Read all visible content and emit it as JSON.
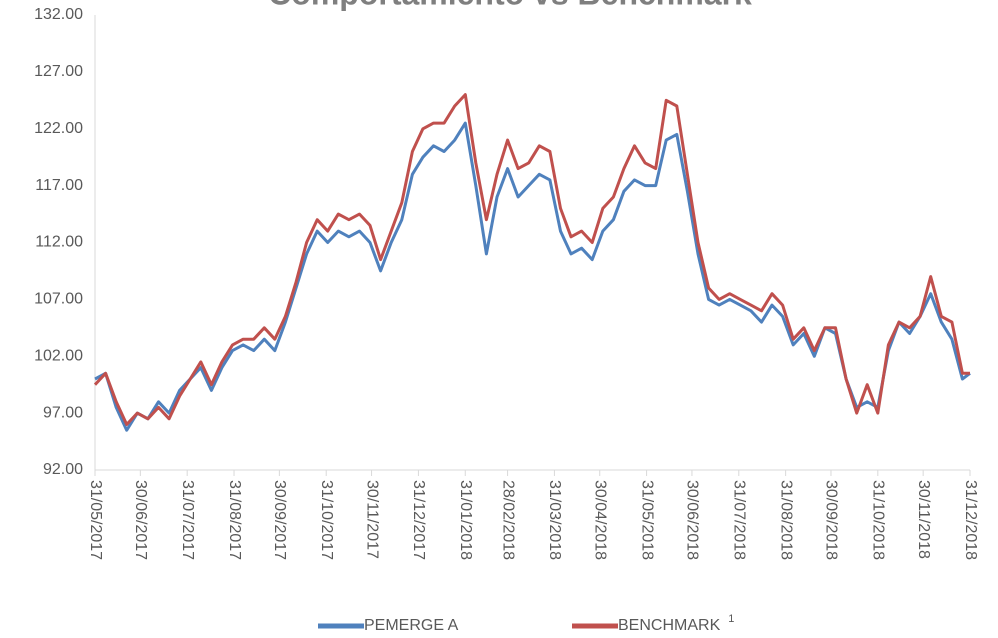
{
  "chart_data": {
    "type": "line",
    "title": "Comportamiento vs Benchmark",
    "x": [
      "2017-05-31",
      "2017-06-07",
      "2017-06-14",
      "2017-06-21",
      "2017-06-28",
      "2017-07-05",
      "2017-07-12",
      "2017-07-19",
      "2017-07-26",
      "2017-08-02",
      "2017-08-09",
      "2017-08-16",
      "2017-08-23",
      "2017-08-30",
      "2017-09-06",
      "2017-09-13",
      "2017-09-20",
      "2017-09-27",
      "2017-10-04",
      "2017-10-11",
      "2017-10-18",
      "2017-10-25",
      "2017-11-01",
      "2017-11-08",
      "2017-11-15",
      "2017-11-22",
      "2017-11-29",
      "2017-12-06",
      "2017-12-13",
      "2017-12-20",
      "2017-12-27",
      "2018-01-03",
      "2018-01-10",
      "2018-01-17",
      "2018-01-24",
      "2018-01-31",
      "2018-02-07",
      "2018-02-14",
      "2018-02-21",
      "2018-02-28",
      "2018-03-07",
      "2018-03-14",
      "2018-03-21",
      "2018-03-28",
      "2018-04-04",
      "2018-04-11",
      "2018-04-18",
      "2018-04-25",
      "2018-05-02",
      "2018-05-09",
      "2018-05-16",
      "2018-05-23",
      "2018-05-30",
      "2018-06-06",
      "2018-06-13",
      "2018-06-20",
      "2018-06-27",
      "2018-07-04",
      "2018-07-11",
      "2018-07-18",
      "2018-07-25",
      "2018-08-01",
      "2018-08-08",
      "2018-08-15",
      "2018-08-22",
      "2018-08-29",
      "2018-09-05",
      "2018-09-12",
      "2018-09-19",
      "2018-09-26",
      "2018-10-03",
      "2018-10-10",
      "2018-10-17",
      "2018-10-24",
      "2018-10-31",
      "2018-11-07",
      "2018-11-14",
      "2018-11-21",
      "2018-11-28",
      "2018-12-05",
      "2018-12-12",
      "2018-12-19",
      "2018-12-26",
      "2018-12-31"
    ],
    "series": [
      {
        "name": "PEMERGE A",
        "color": "#4f81bd",
        "values": [
          100,
          100.5,
          97.5,
          95.5,
          97,
          96.5,
          98,
          97,
          99,
          100,
          101,
          99,
          101,
          102.5,
          103,
          102.5,
          103.5,
          102.5,
          105,
          108,
          111,
          113,
          112,
          113,
          112.5,
          113,
          112,
          109.5,
          112,
          114,
          118,
          119.5,
          120.5,
          120,
          121,
          122.5,
          117,
          111,
          116,
          118.5,
          116,
          117,
          118,
          117.5,
          113,
          111,
          111.5,
          110.5,
          113,
          114,
          116.5,
          117.5,
          117,
          117,
          121,
          121.5,
          116.5,
          111,
          107,
          106.5,
          107,
          106.5,
          106,
          105,
          106.5,
          105.5,
          103,
          104,
          102,
          104.5,
          104,
          100,
          97.5,
          98,
          97.5,
          102.5,
          105,
          104,
          105.5,
          107.5,
          105,
          103.5,
          100,
          100.5
        ]
      },
      {
        "name": "BENCHMARK",
        "color": "#c0504d",
        "values": [
          99.5,
          100.5,
          98,
          96,
          97,
          96.5,
          97.5,
          96.5,
          98.5,
          100,
          101.5,
          99.5,
          101.5,
          103,
          103.5,
          103.5,
          104.5,
          103.5,
          105.5,
          108.5,
          112,
          114,
          113,
          114.5,
          114,
          114.5,
          113.5,
          110.5,
          113,
          115.5,
          120,
          122,
          122.5,
          122.5,
          124,
          125,
          119,
          114,
          118,
          121,
          118.5,
          119,
          120.5,
          120,
          115,
          112.5,
          113,
          112,
          115,
          116,
          118.5,
          120.5,
          119,
          118.5,
          124.5,
          124,
          118,
          112,
          108,
          107,
          107.5,
          107,
          106.5,
          106,
          107.5,
          106.5,
          103.5,
          104.5,
          102.5,
          104.5,
          104.5,
          100,
          97,
          99.5,
          97,
          103,
          105,
          104.5,
          105.5,
          109,
          105.5,
          105,
          100.5,
          100.5
        ]
      }
    ],
    "legend_footnote": "1",
    "xlim": [
      "2017-05-31",
      "2018-12-31"
    ],
    "xticks": [
      {
        "value": "2017-05-31",
        "label": "31/05/2017"
      },
      {
        "value": "2017-06-30",
        "label": "30/06/2017"
      },
      {
        "value": "2017-07-31",
        "label": "31/07/2017"
      },
      {
        "value": "2017-08-31",
        "label": "31/08/2017"
      },
      {
        "value": "2017-09-30",
        "label": "30/09/2017"
      },
      {
        "value": "2017-10-31",
        "label": "31/10/2017"
      },
      {
        "value": "2017-11-30",
        "label": "30/11/2017"
      },
      {
        "value": "2017-12-31",
        "label": "31/12/2017"
      },
      {
        "value": "2018-01-31",
        "label": "31/01/2018"
      },
      {
        "value": "2018-02-28",
        "label": "28/02/2018"
      },
      {
        "value": "2018-03-31",
        "label": "31/03/2018"
      },
      {
        "value": "2018-04-30",
        "label": "30/04/2018"
      },
      {
        "value": "2018-05-31",
        "label": "31/05/2018"
      },
      {
        "value": "2018-06-30",
        "label": "30/06/2018"
      },
      {
        "value": "2018-07-31",
        "label": "31/07/2018"
      },
      {
        "value": "2018-08-31",
        "label": "31/08/2018"
      },
      {
        "value": "2018-09-30",
        "label": "30/09/2018"
      },
      {
        "value": "2018-10-31",
        "label": "31/10/2018"
      },
      {
        "value": "2018-11-30",
        "label": "30/11/2018"
      },
      {
        "value": "2018-12-31",
        "label": "31/12/2018"
      }
    ],
    "ylim": [
      92,
      132
    ],
    "yticks": [
      {
        "value": 92,
        "label": "92.00"
      },
      {
        "value": 97,
        "label": "97.00"
      },
      {
        "value": 102,
        "label": "102.00"
      },
      {
        "value": 107,
        "label": "107.00"
      },
      {
        "value": 112,
        "label": "112.00"
      },
      {
        "value": 117,
        "label": "117.00"
      },
      {
        "value": 122,
        "label": "122.00"
      },
      {
        "value": 127,
        "label": "127.00"
      },
      {
        "value": 132,
        "label": "132.00"
      }
    ],
    "grid": false,
    "legend": "bottom"
  }
}
